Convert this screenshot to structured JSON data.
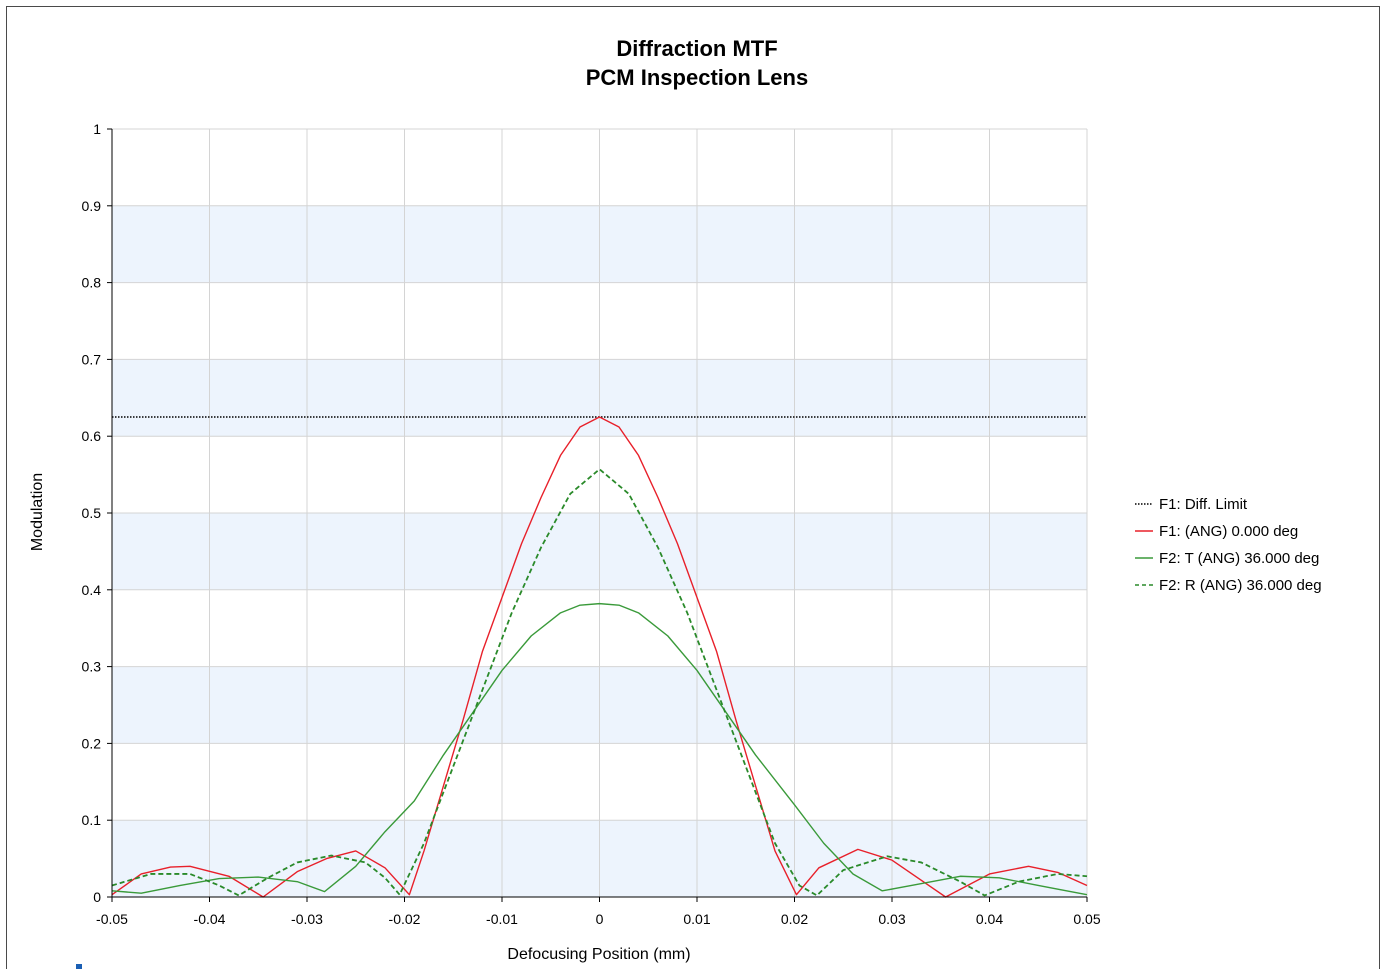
{
  "chart_data": {
    "type": "line",
    "title": "Diffraction MTF",
    "subtitle": "PCM Inspection Lens",
    "xlabel": "Defocusing Position (mm)",
    "ylabel": "Modulation",
    "xlim": [
      -0.05,
      0.05
    ],
    "ylim": [
      0,
      1
    ],
    "x_ticks": [
      "-0.05",
      "-0.04",
      "-0.03",
      "-0.02",
      "-0.01",
      "0",
      "0.01",
      "0.02",
      "0.03",
      "0.04",
      "0.05"
    ],
    "y_ticks": [
      "0",
      "0.1",
      "0.2",
      "0.3",
      "0.4",
      "0.5",
      "0.6",
      "0.7",
      "0.8",
      "0.9",
      "1"
    ],
    "grid": true,
    "alternating_bands": true,
    "band_color": "#edf4fd",
    "legend_position": "right",
    "series": [
      {
        "name": "F1: Diff. Limit",
        "color": "#000000",
        "style": "dotted",
        "x": [
          -0.05,
          0.05
        ],
        "y": [
          0.625,
          0.625
        ]
      },
      {
        "name": "F1: (ANG) 0.000 deg",
        "color": "#e8202a",
        "style": "solid",
        "x": [
          -0.05,
          -0.047,
          -0.044,
          -0.042,
          -0.038,
          -0.0345,
          -0.031,
          -0.028,
          -0.025,
          -0.022,
          -0.0195,
          -0.018,
          -0.016,
          -0.014,
          -0.012,
          -0.01,
          -0.008,
          -0.006,
          -0.004,
          -0.002,
          0,
          0.002,
          0.004,
          0.006,
          0.008,
          0.01,
          0.012,
          0.014,
          0.016,
          0.018,
          0.0202,
          0.0225,
          0.0265,
          0.03,
          0.0355,
          0.04,
          0.044,
          0.047,
          0.05
        ],
        "y": [
          0.003,
          0.03,
          0.039,
          0.04,
          0.027,
          0.0,
          0.033,
          0.05,
          0.06,
          0.038,
          0.003,
          0.06,
          0.145,
          0.23,
          0.32,
          0.39,
          0.46,
          0.52,
          0.575,
          0.612,
          0.625,
          0.612,
          0.575,
          0.52,
          0.46,
          0.39,
          0.32,
          0.23,
          0.145,
          0.06,
          0.003,
          0.038,
          0.062,
          0.048,
          0.0,
          0.03,
          0.04,
          0.032,
          0.015
        ]
      },
      {
        "name": "F2: T (ANG) 36.000 deg",
        "color": "#3a9a3a",
        "style": "solid",
        "x": [
          -0.05,
          -0.047,
          -0.043,
          -0.039,
          -0.035,
          -0.031,
          -0.0282,
          -0.025,
          -0.022,
          -0.019,
          -0.016,
          -0.013,
          -0.01,
          -0.007,
          -0.004,
          -0.002,
          0,
          0.002,
          0.004,
          0.007,
          0.01,
          0.013,
          0.016,
          0.02,
          0.023,
          0.026,
          0.029,
          0.032,
          0.037,
          0.041,
          0.045,
          0.05
        ],
        "y": [
          0.008,
          0.005,
          0.015,
          0.024,
          0.026,
          0.02,
          0.007,
          0.04,
          0.085,
          0.125,
          0.185,
          0.24,
          0.295,
          0.34,
          0.37,
          0.38,
          0.382,
          0.38,
          0.37,
          0.34,
          0.295,
          0.24,
          0.185,
          0.12,
          0.07,
          0.03,
          0.008,
          0.015,
          0.027,
          0.025,
          0.015,
          0.003
        ]
      },
      {
        "name": "F2: R (ANG) 36.000 deg",
        "color": "#2a8a2a",
        "style": "dashed",
        "x": [
          -0.05,
          -0.046,
          -0.042,
          -0.039,
          -0.037,
          -0.034,
          -0.031,
          -0.0275,
          -0.024,
          -0.022,
          -0.0205,
          -0.018,
          -0.015,
          -0.012,
          -0.009,
          -0.006,
          -0.003,
          0,
          0.003,
          0.006,
          0.009,
          0.012,
          0.015,
          0.018,
          0.0205,
          0.0223,
          0.025,
          0.0295,
          0.033,
          0.037,
          0.0395,
          0.043,
          0.047,
          0.05
        ],
        "y": [
          0.015,
          0.03,
          0.03,
          0.015,
          0.002,
          0.025,
          0.045,
          0.054,
          0.045,
          0.025,
          0.003,
          0.07,
          0.17,
          0.27,
          0.37,
          0.455,
          0.525,
          0.557,
          0.525,
          0.455,
          0.37,
          0.27,
          0.17,
          0.07,
          0.015,
          0.002,
          0.035,
          0.053,
          0.045,
          0.02,
          0.002,
          0.02,
          0.03,
          0.027
        ]
      }
    ]
  }
}
